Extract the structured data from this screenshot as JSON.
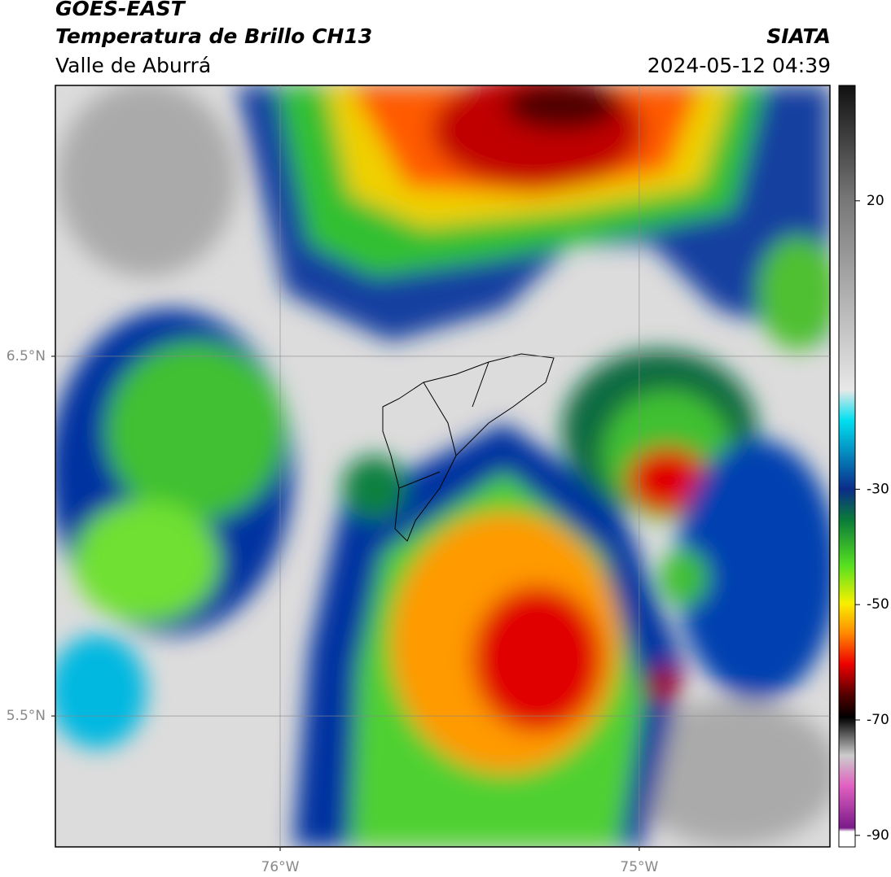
{
  "header": {
    "title": "GOES-EAST",
    "subtitle": "Temperatura de Brillo CH13",
    "source": "SIATA",
    "region": "Valle de Aburrá",
    "timestamp": "2024-05-12 04:39"
  },
  "map": {
    "xlim": [
      -76.626,
      -74.469
    ],
    "ylim": [
      5.136,
      7.253
    ],
    "xticks": [
      {
        "value": -76,
        "label": "76°W"
      },
      {
        "value": -75,
        "label": "75°W"
      }
    ],
    "yticks": [
      {
        "value": 6.5,
        "label": "6.5°N"
      },
      {
        "value": 5.5,
        "label": "5.5°N"
      }
    ],
    "grid": true
  },
  "colorbar": {
    "range": [
      -92,
      40
    ],
    "ticks": [
      20,
      -30,
      -50,
      -70,
      -90
    ]
  }
}
